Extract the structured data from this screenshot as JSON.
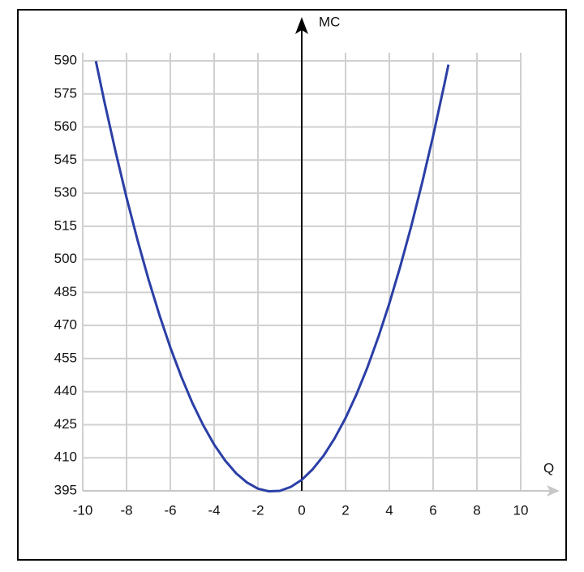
{
  "chart_data": {
    "type": "line",
    "x_label": "Q",
    "y_label": "MC",
    "x": [
      -9.4,
      -9,
      -8.5,
      -8,
      -7.5,
      -7,
      -6.5,
      -6,
      -5.5,
      -5,
      -4.5,
      -4,
      -3.5,
      -3,
      -2.5,
      -2,
      -1.5,
      -1,
      -0.5,
      0,
      0.5,
      1,
      1.5,
      2,
      2.5,
      3,
      3.5,
      4,
      4.5,
      5,
      5.5,
      6,
      6.5,
      6.7
    ],
    "series": [
      {
        "color": "#2b3fa6",
        "values": [
          589.9,
          571,
          548.8,
          528,
          508.8,
          491,
          474.8,
          460,
          446.8,
          435,
          424.8,
          416,
          408.8,
          403,
          398.8,
          396,
          394.8,
          395,
          396.8,
          400,
          404.8,
          411,
          418.8,
          428,
          438.8,
          451,
          464.8,
          480,
          496.8,
          515,
          534.8,
          556,
          578.8,
          588.3
        ]
      }
    ],
    "xlim": [
      -10,
      10
    ],
    "xticks": [
      -10,
      -8,
      -6,
      -4,
      -2,
      0,
      2,
      4,
      6,
      8,
      10
    ],
    "ylim": [
      395,
      590
    ],
    "yticks": [
      395,
      410,
      425,
      440,
      455,
      470,
      485,
      500,
      515,
      530,
      545,
      560,
      575,
      590
    ],
    "grid": true
  }
}
